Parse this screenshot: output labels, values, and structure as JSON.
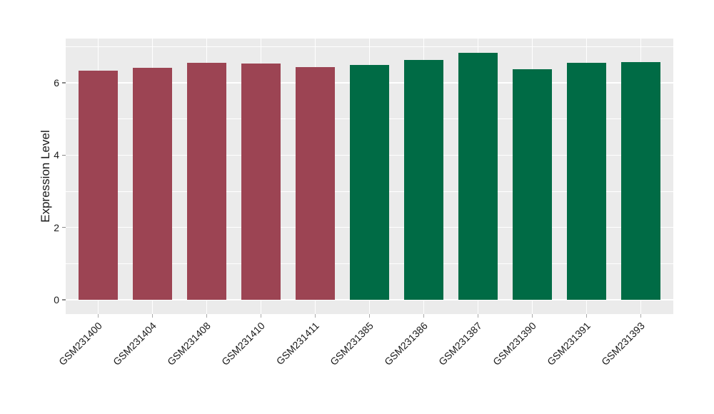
{
  "chart_data": {
    "type": "bar",
    "title": "",
    "xlabel": "",
    "ylabel": "Expression Level",
    "categories": [
      "GSM231400",
      "GSM231404",
      "GSM231408",
      "GSM231410",
      "GSM231411",
      "GSM231385",
      "GSM231386",
      "GSM231387",
      "GSM231390",
      "GSM231391",
      "GSM231393"
    ],
    "values": [
      6.33,
      6.42,
      6.55,
      6.53,
      6.44,
      6.5,
      6.63,
      6.82,
      6.37,
      6.56,
      6.57
    ],
    "bar_colors": [
      "#9C4453",
      "#9C4453",
      "#9C4453",
      "#9C4453",
      "#9C4453",
      "#006B45",
      "#006B45",
      "#006B45",
      "#006B45",
      "#006B45",
      "#006B45"
    ],
    "yticks": [
      0,
      2,
      4,
      6
    ],
    "minor_yticks": [
      1,
      3,
      5,
      7
    ],
    "ylim": [
      -0.39,
      7.22
    ],
    "grid": "major+minor horizontal, major vertical at category centers",
    "legend": "none",
    "panel_background": "#EBEBEB",
    "gridline_color": "#FFFFFF",
    "axis_text_color": "#1A1A1A"
  }
}
